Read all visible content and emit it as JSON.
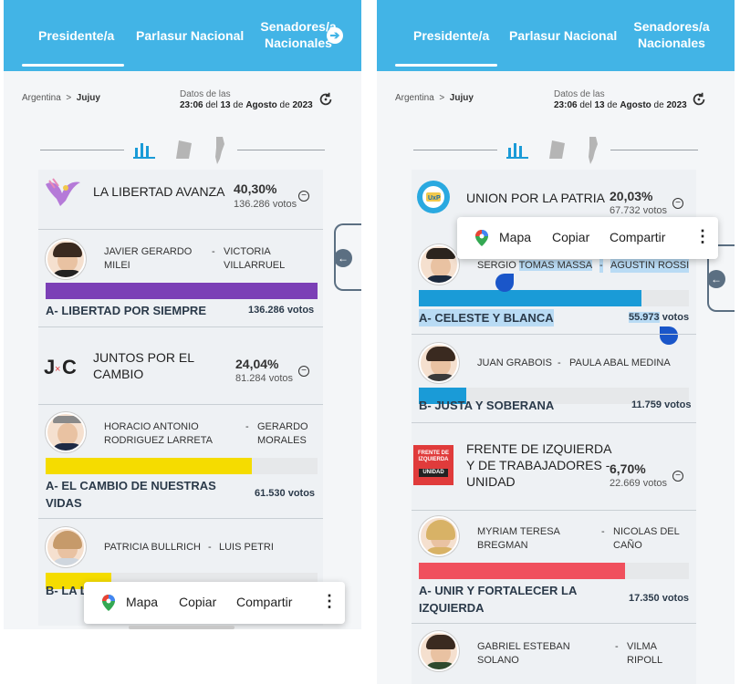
{
  "tabs": {
    "presidente": "Presidente/a",
    "parlasur": "Parlasur Nacional",
    "senadores_line1": "Senadores/a",
    "senadores_line2": "Nacionales"
  },
  "breadcrumb": {
    "country": "Argentina",
    "sep": ">",
    "province": "Jujuy"
  },
  "datos": {
    "line1": "Datos de las",
    "time": "23:06",
    "del": "del",
    "day": "13",
    "de1": "de",
    "month": "Agosto",
    "de2": "de",
    "year": "2023"
  },
  "popup": {
    "mapa": "Mapa",
    "copiar": "Copiar",
    "compartir": "Compartir"
  },
  "colors": {
    "header": "#42b4e6",
    "lla": "#7b3fb6",
    "jxc": "#f5dc00",
    "uxp": "#1a9bd7",
    "justa": "#1a9bd7",
    "fit": "#f0505d"
  },
  "left": {
    "p1": {
      "name": "LA LIBERTAD AVANZA",
      "pct": "40,30%",
      "votes": "136.286 votos",
      "cand_a1": "JAVIER GERARDO",
      "cand_a2": "MILEI",
      "dash": "-",
      "cand_b1": "VICTORIA",
      "cand_b2": "VILLARRUEL",
      "list": "A- LIBERTAD POR SIEMPRE",
      "list_votes": "136.286 votos",
      "share": 1.0
    },
    "p2": {
      "name1": "JUNTOS POR EL",
      "name2": "CAMBIO",
      "pct": "24,04%",
      "votes": "81.284 votos",
      "cand_a1": "HORACIO ANTONIO",
      "cand_a2": "RODRIGUEZ LARRETA",
      "dash": "-",
      "cand_b1": "GERARDO",
      "cand_b2": "MORALES",
      "list1": "A- EL CAMBIO DE NUESTRAS",
      "list2": "VIDAS",
      "list_votes": "61.530 votos",
      "share": 0.757,
      "cand_c1": "PATRICIA BULLRICH",
      "dash2": "-",
      "cand_d1": "LUIS PETRI",
      "list_b": "B- LA L",
      "share_b": 0.243
    }
  },
  "right": {
    "p1": {
      "name": "UNION POR LA PATRIA",
      "pct": "20,03%",
      "votes": "67.732 votos",
      "cand_a1a": "SERGIO",
      "cand_a1b": "TOMAS MASSA",
      "dash": "-",
      "cand_b1": "AGUSTIN ROSSI",
      "list": "A- CELESTE Y BLANCA",
      "list_votes_num": "55.973",
      "list_votes_word": "votos",
      "share": 0.826,
      "cand_c1": "JUAN GRABOIS",
      "dash2": "-",
      "cand_d1": "PAULA ABAL MEDINA",
      "list_b": "B- JUSTA Y SOBERANA",
      "list_b_votes": "11.759 votos",
      "share_b": 0.174
    },
    "p2": {
      "name1": "FRENTE DE IZQUIERDA",
      "name2": "Y DE TRABAJADORES -",
      "name3": "UNIDAD",
      "pct": "6,70%",
      "votes": "22.669 votos",
      "logo_l1": "FRENTE DE",
      "logo_l2": "IZQUIERDA",
      "logo_l3": "UNIDAD",
      "cand_a1": "MYRIAM TERESA",
      "cand_a2": "BREGMAN",
      "dash": "-",
      "cand_b1": "NICOLAS DEL",
      "cand_b2": "CAÑO",
      "list1": "A- UNIR Y FORTALECER LA",
      "list2": "IZQUIERDA",
      "list_votes": "17.350 votos",
      "share": 0.765,
      "cand_c1": "GABRIEL ESTEBAN",
      "cand_c2": "SOLANO",
      "dash2": "-",
      "cand_d1": "VILMA",
      "cand_d2": "RIPOLL"
    }
  }
}
